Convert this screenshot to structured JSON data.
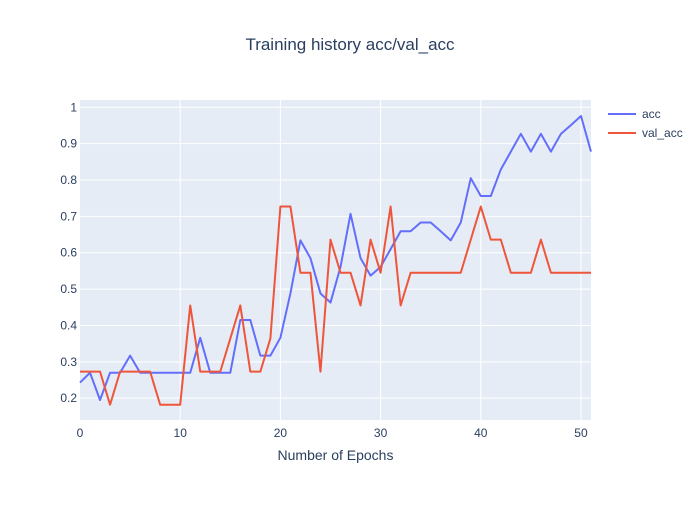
{
  "chart_data": {
    "type": "line",
    "title": "Training history acc/val_acc",
    "xlabel": "Number of Epochs",
    "ylabel": "",
    "xlim": [
      0,
      51
    ],
    "ylim": [
      0.14,
      1.02
    ],
    "x_ticks": [
      0,
      10,
      20,
      30,
      40,
      50
    ],
    "y_ticks": [
      0.2,
      0.3,
      0.4,
      0.5,
      0.6,
      0.7,
      0.8,
      0.9,
      1
    ],
    "x_tick_labels": [
      "0",
      "10",
      "20",
      "30",
      "40",
      "50"
    ],
    "y_tick_labels": [
      "0.2",
      "0.3",
      "0.4",
      "0.5",
      "0.6",
      "0.7",
      "0.8",
      "0.9",
      "1"
    ],
    "grid": true,
    "legend_position": "right",
    "x": [
      0,
      1,
      2,
      3,
      4,
      5,
      6,
      7,
      8,
      9,
      10,
      11,
      12,
      13,
      14,
      15,
      16,
      17,
      18,
      19,
      20,
      21,
      22,
      23,
      24,
      25,
      26,
      27,
      28,
      29,
      30,
      31,
      32,
      33,
      34,
      35,
      36,
      37,
      38,
      39,
      40,
      41,
      42,
      43,
      44,
      45,
      46,
      47,
      48,
      49,
      50,
      51
    ],
    "series": [
      {
        "name": "acc",
        "color": "#636efa",
        "values": [
          0.243,
          0.27,
          0.195,
          0.27,
          0.27,
          0.317,
          0.27,
          0.27,
          0.27,
          0.27,
          0.27,
          0.27,
          0.366,
          0.27,
          0.27,
          0.27,
          0.415,
          0.415,
          0.317,
          0.317,
          0.366,
          0.488,
          0.634,
          0.585,
          0.488,
          0.463,
          0.561,
          0.707,
          0.585,
          0.537,
          0.561,
          0.61,
          0.659,
          0.659,
          0.683,
          0.683,
          0.659,
          0.634,
          0.683,
          0.805,
          0.756,
          0.756,
          0.829,
          0.878,
          0.927,
          0.878,
          0.927,
          0.878,
          0.927,
          0.951,
          0.976,
          0.878
        ]
      },
      {
        "name": "val_acc",
        "color": "#ef553b",
        "values": [
          0.273,
          0.273,
          0.273,
          0.182,
          0.273,
          0.273,
          0.273,
          0.273,
          0.182,
          0.182,
          0.182,
          0.455,
          0.273,
          0.273,
          0.273,
          0.364,
          0.455,
          0.273,
          0.273,
          0.364,
          0.727,
          0.727,
          0.545,
          0.545,
          0.273,
          0.636,
          0.545,
          0.545,
          0.455,
          0.636,
          0.545,
          0.727,
          0.455,
          0.545,
          0.545,
          0.545,
          0.545,
          0.545,
          0.545,
          0.636,
          0.727,
          0.636,
          0.636,
          0.545,
          0.545,
          0.545,
          0.636,
          0.545,
          0.545,
          0.545,
          0.545,
          0.545
        ]
      }
    ]
  }
}
